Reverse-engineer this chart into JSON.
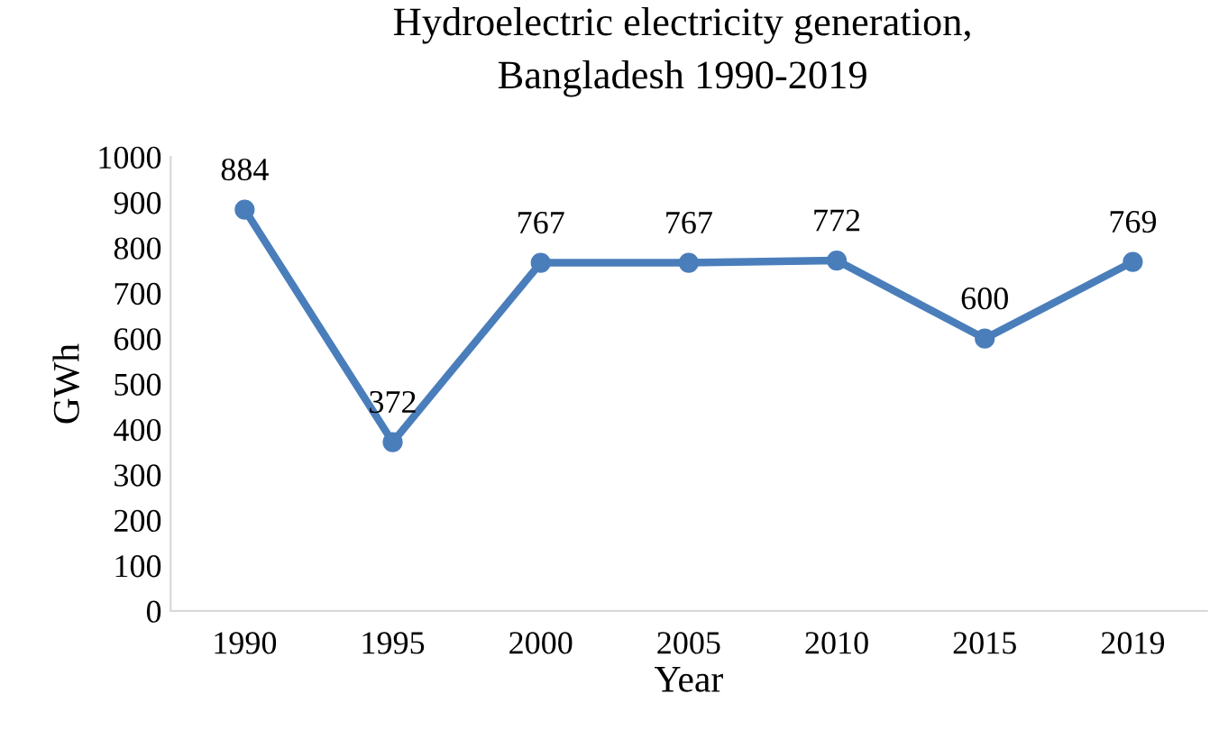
{
  "chart_data": {
    "type": "line",
    "title": "Hydroelectric electricity generation,\nBangladesh 1990-2019",
    "xlabel": "Year",
    "ylabel": "GWh",
    "categories": [
      "1990",
      "1995",
      "2000",
      "2005",
      "2010",
      "2015",
      "2019"
    ],
    "series": [
      {
        "color": "#4a7ebb",
        "values": [
          884,
          372,
          767,
          767,
          772,
          600,
          769
        ]
      }
    ],
    "ylim": [
      0,
      1000
    ],
    "yticks": [
      0,
      100,
      200,
      300,
      400,
      500,
      600,
      700,
      800,
      900,
      1000
    ],
    "marker": "circle",
    "line_style": "solid",
    "data_labels": true,
    "grid": false,
    "legend": false
  }
}
